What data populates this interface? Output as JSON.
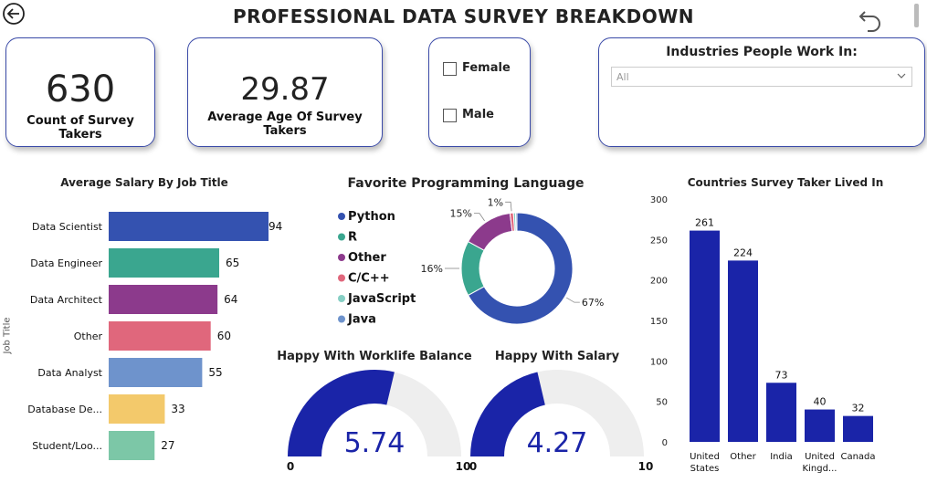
{
  "header": {
    "title": "PROFESSIONAL DATA SURVEY BREAKDOWN"
  },
  "nav": {
    "back_icon": "back-arrow-icon",
    "undo_icon": "undo-icon"
  },
  "kpis": {
    "count": {
      "value": "630",
      "label": "Count of Survey Takers"
    },
    "age": {
      "value": "29.87",
      "label": "Average Age Of Survey Takers"
    }
  },
  "gender_filter": {
    "female_label": "Female",
    "male_label": "Male"
  },
  "industry_filter": {
    "label": "Industries People Work In:",
    "selected": "All"
  },
  "chart_data": [
    {
      "type": "bar",
      "orientation": "horizontal",
      "title": "Average Salary By Job Title",
      "ylabel": "Job Title",
      "categories": [
        "Data Scientist",
        "Data Engineer",
        "Data Architect",
        "Other",
        "Data Analyst",
        "Database De...",
        "Student/Loo..."
      ],
      "values": [
        94,
        65,
        64,
        60,
        55,
        33,
        27
      ],
      "colors": [
        "#3452b0",
        "#3aa68f",
        "#8c3a8c",
        "#e0677c",
        "#6e93cc",
        "#f3c96b",
        "#7cc7a7"
      ]
    },
    {
      "type": "pie",
      "title": "Favorite Programming Language",
      "labels": [
        "Python",
        "R",
        "Other",
        "C/C++",
        "JavaScript",
        "Java"
      ],
      "values": [
        67,
        16,
        15,
        1,
        0.6,
        0.4
      ],
      "slice_labels": [
        "67%",
        "16%",
        "15%",
        "1%",
        "",
        ""
      ],
      "colors": [
        "#3452b0",
        "#3aa68f",
        "#8c3a8c",
        "#e0677c",
        "#86cfc4",
        "#6e93cc"
      ]
    },
    {
      "type": "gauge",
      "title": "Happy With Worklife Balance",
      "value": 5.74,
      "value_label": "5.74",
      "min": 0,
      "max": 10,
      "min_label": "0",
      "max_label": "10"
    },
    {
      "type": "gauge",
      "title": "Happy With Salary",
      "value": 4.27,
      "value_label": "4.27",
      "min": 0,
      "max": 10,
      "min_label": "0",
      "max_label": "10"
    },
    {
      "type": "bar",
      "title": "Countries Survey Taker Lived In",
      "categories": [
        [
          "United",
          "States"
        ],
        [
          "Other"
        ],
        [
          "India"
        ],
        [
          "United",
          "Kingd..."
        ],
        [
          "Canada"
        ]
      ],
      "values": [
        261,
        224,
        73,
        40,
        32
      ],
      "ylim": [
        0,
        300
      ],
      "yticks": [
        0,
        50,
        100,
        150,
        200,
        250,
        300
      ],
      "color": "#1a24a8"
    }
  ],
  "colors": {
    "gauge_fill": "#1a24a8",
    "gauge_track": "#eeeeee",
    "card_border": "#3a4aa8"
  }
}
